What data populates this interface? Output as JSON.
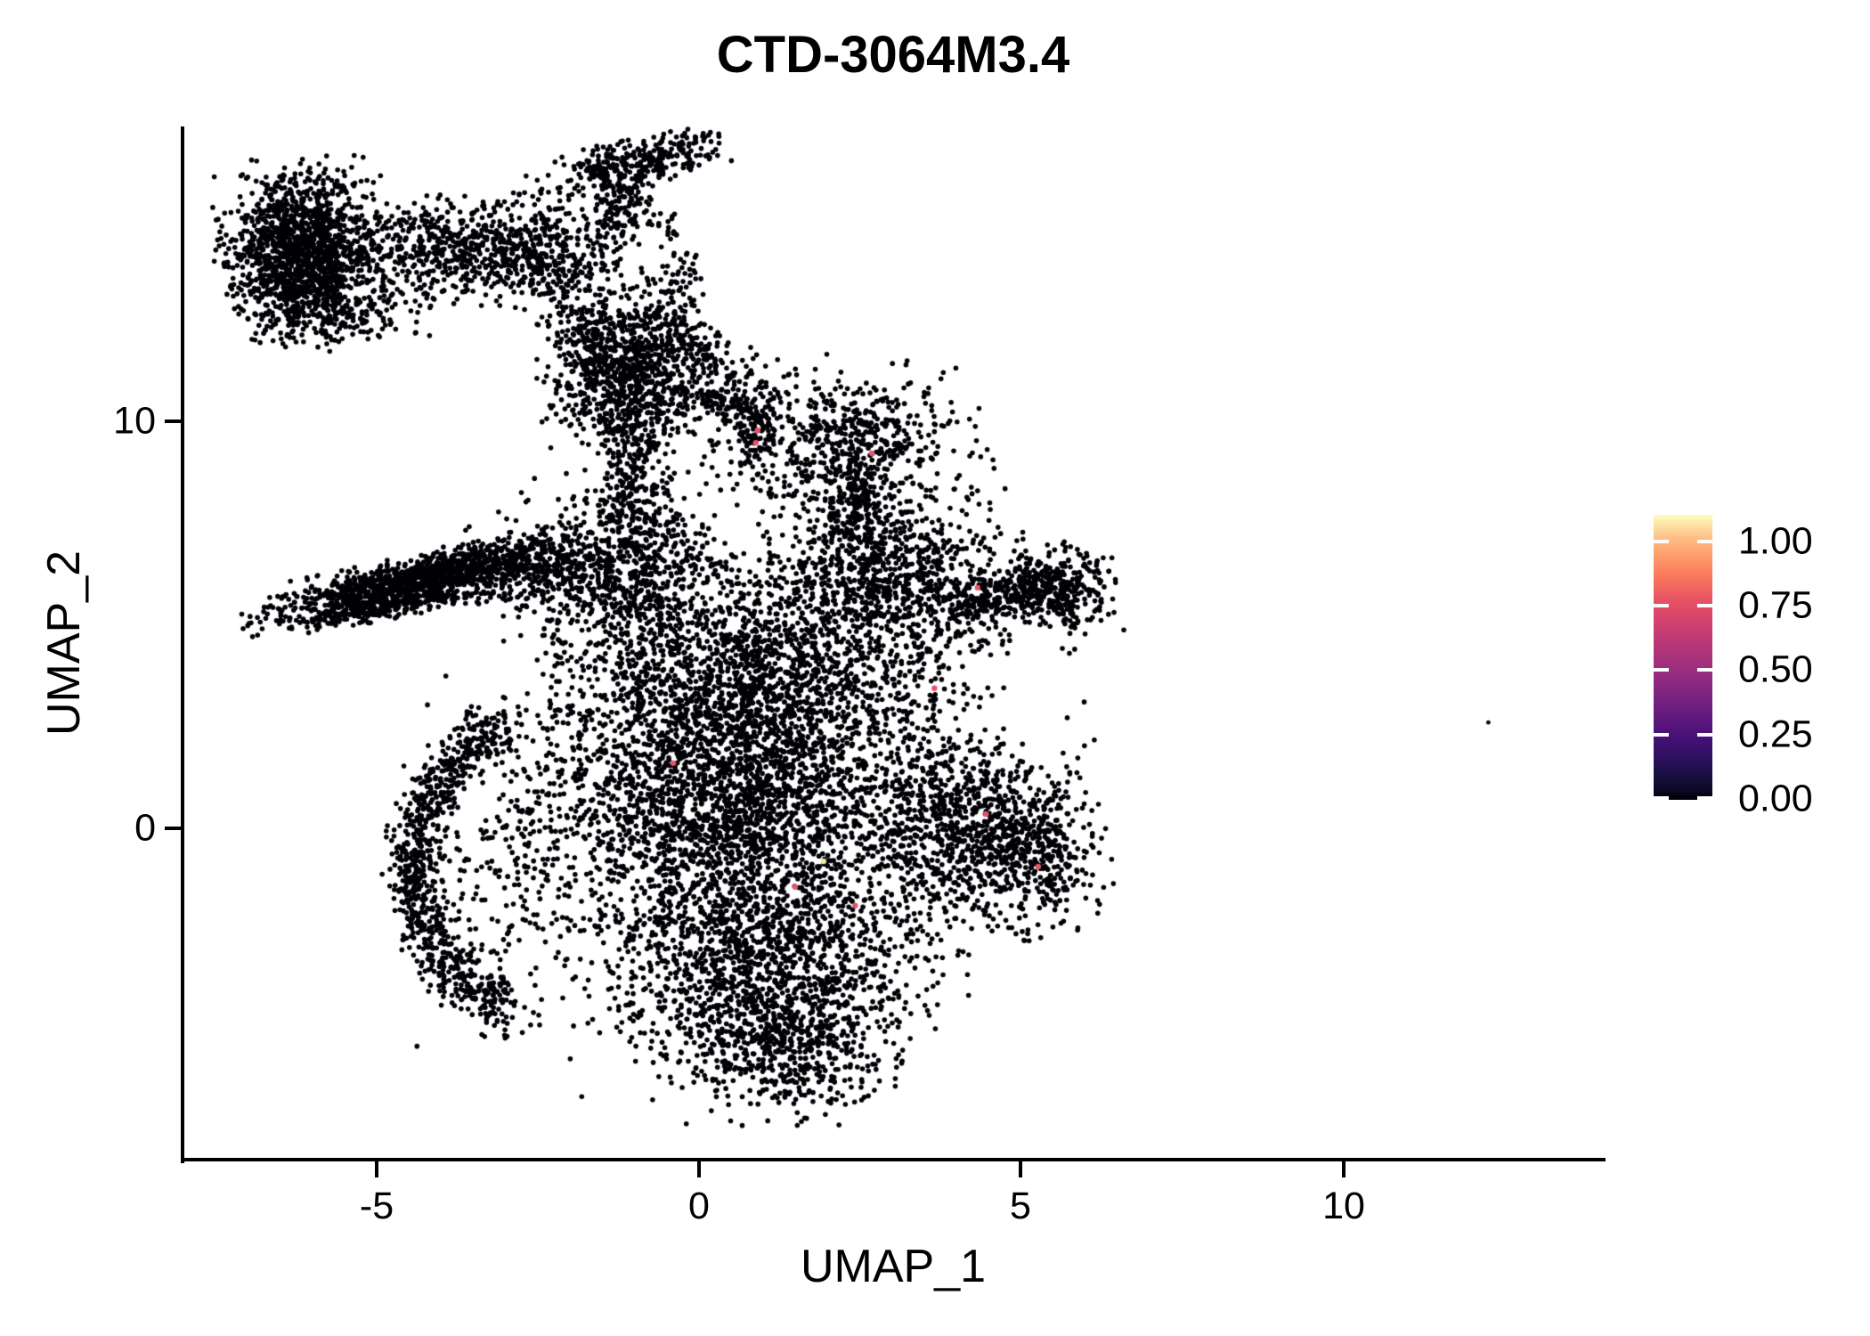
{
  "title": "CTD-3064M3.4",
  "x_axis": {
    "label": "UMAP_1",
    "ticks": [
      {
        "text": "-5"
      },
      {
        "text": "0"
      },
      {
        "text": "5"
      },
      {
        "text": "10"
      }
    ]
  },
  "y_axis": {
    "label": "UMAP_2",
    "ticks": [
      {
        "text": "10"
      },
      {
        "text": "0"
      }
    ]
  },
  "legend": {
    "ticks": [
      {
        "text": "1.00"
      },
      {
        "text": "0.75"
      },
      {
        "text": "0.50"
      },
      {
        "text": "0.25"
      },
      {
        "text": "0.00"
      }
    ]
  },
  "chart_data": {
    "type": "scatter",
    "title": "CTD-3064M3.4",
    "xlabel": "UMAP_1",
    "ylabel": "UMAP_2",
    "x_range": [
      -8.01,
      14.03
    ],
    "y_range": [
      -8.14,
      17.24
    ],
    "x_ticks": [
      -5,
      0,
      5,
      10
    ],
    "y_ticks": [
      0,
      10
    ],
    "grid": false,
    "legend_position": "right",
    "point_color": "#000006",
    "point_radius_px": 2.8,
    "expressing_point_radius_px": 3.2,
    "colorbar": {
      "value_ticks": [
        1.0,
        0.75,
        0.5,
        0.25,
        0.0
      ],
      "stops": [
        {
          "pos": 0,
          "color": "#fcfdbf"
        },
        {
          "pos": 8,
          "color": "#febf84"
        },
        {
          "pos": 14,
          "color": "#fe9f6d"
        },
        {
          "pos": 22,
          "color": "#f8765c"
        },
        {
          "pos": 30,
          "color": "#e75263"
        },
        {
          "pos": 38,
          "color": "#d0416f"
        },
        {
          "pos": 46,
          "color": "#b63679"
        },
        {
          "pos": 54,
          "color": "#9c2e7f"
        },
        {
          "pos": 62,
          "color": "#812581"
        },
        {
          "pos": 70,
          "color": "#641a80"
        },
        {
          "pos": 78,
          "color": "#471078"
        },
        {
          "pos": 85,
          "color": "#2d1160"
        },
        {
          "pos": 92,
          "color": "#180f3e"
        },
        {
          "pos": 97,
          "color": "#0a0722"
        },
        {
          "pos": 100,
          "color": "#000004"
        }
      ]
    },
    "seed": 42,
    "clusters": [
      {
        "shape": "gauss",
        "cx": -6.15,
        "cy": 14.18,
        "sx": 0.55,
        "sy": 0.92,
        "n": 1500
      },
      {
        "shape": "gauss",
        "cx": -5.66,
        "cy": 12.69,
        "sx": 0.6,
        "sy": 0.38,
        "n": 200
      },
      {
        "shape": "gauss",
        "cx": -4.21,
        "cy": 14.22,
        "sx": 0.48,
        "sy": 0.61,
        "n": 320
      },
      {
        "shape": "gauss",
        "cx": -2.69,
        "cy": 14.22,
        "sx": 0.62,
        "sy": 0.7,
        "n": 480
      },
      {
        "shape": "stream",
        "x1": -2.56,
        "y1": 13.79,
        "x2": -1.17,
        "y2": 11.16,
        "j": 0.25,
        "n": 140
      },
      {
        "shape": "gauss",
        "cx": -1.1,
        "cy": 11.27,
        "sx": 0.58,
        "sy": 0.98,
        "n": 950
      },
      {
        "shape": "stream",
        "x1": -1.8,
        "y1": 16.08,
        "x2": 0.0,
        "y2": 16.74,
        "j": 0.28,
        "n": 300
      },
      {
        "shape": "gauss",
        "cx": -1.17,
        "cy": 15.43,
        "sx": 0.25,
        "sy": 0.42,
        "n": 120
      },
      {
        "shape": "stream",
        "x1": -1.31,
        "y1": 14.88,
        "x2": -1.73,
        "y2": 13.13,
        "j": 0.2,
        "n": 60
      },
      {
        "shape": "stream",
        "x1": -0.48,
        "y1": 15.1,
        "x2": -0.21,
        "y2": 12.69,
        "j": 0.18,
        "n": 70
      },
      {
        "shape": "gauss",
        "cx": -4.35,
        "cy": 6.13,
        "sx": 1.15,
        "sy": 0.25,
        "rot": 20,
        "n": 1100
      },
      {
        "shape": "gauss",
        "cx": -4.8,
        "cy": 5.45,
        "sx": 0.95,
        "sy": 0.14,
        "rot": 15,
        "n": 300
      },
      {
        "shape": "gauss",
        "cx": -2.56,
        "cy": 6.35,
        "sx": 0.5,
        "sy": 0.5,
        "n": 250
      },
      {
        "shape": "gauss",
        "cx": -1.17,
        "cy": 6.35,
        "sx": 0.76,
        "sy": 0.98,
        "n": 750
      },
      {
        "shape": "gauss",
        "cx": 2.97,
        "cy": 6.13,
        "sx": 1.1,
        "sy": 0.88,
        "n": 850
      },
      {
        "shape": "gauss",
        "cx": 0.9,
        "cy": 3.72,
        "sx": 1.52,
        "sy": 1.2,
        "n": 1700
      },
      {
        "shape": "gauss",
        "cx": 0.48,
        "cy": 0.66,
        "sx": 1.38,
        "sy": 1.53,
        "n": 2400
      },
      {
        "shape": "gauss",
        "cx": 4.07,
        "cy": 0.0,
        "sx": 0.83,
        "sy": 1.2,
        "n": 850
      },
      {
        "shape": "gauss",
        "cx": 5.2,
        "cy": -0.6,
        "sx": 0.55,
        "sy": 0.85,
        "n": 350
      },
      {
        "shape": "gauss",
        "cx": 1.04,
        "cy": -3.28,
        "sx": 1.24,
        "sy": 1.31,
        "n": 1500
      },
      {
        "shape": "gauss",
        "cx": 1.31,
        "cy": -5.47,
        "sx": 0.76,
        "sy": 0.77,
        "n": 450
      },
      {
        "shape": "arc",
        "cx": -2.0,
        "cy": -0.98,
        "rx": 2.42,
        "ry": 3.83,
        "a1": 115,
        "a2": 245,
        "jx": 0.2,
        "jy": 0.38,
        "n": 850
      },
      {
        "shape": "gauss",
        "cx": -2.69,
        "cy": -0.88,
        "sx": 0.76,
        "sy": 1.97,
        "n": 300
      },
      {
        "shape": "stream",
        "x1": 3.8,
        "y1": 5.47,
        "x2": 5.32,
        "y2": 5.91,
        "j": 0.25,
        "n": 220
      },
      {
        "shape": "gauss",
        "cx": 5.59,
        "cy": 5.86,
        "sx": 0.39,
        "sy": 0.48,
        "n": 320
      },
      {
        "shape": "stream",
        "x1": -0.9,
        "y1": 10.07,
        "x2": -1.04,
        "y2": 7.44,
        "j": 0.28,
        "n": 200
      },
      {
        "shape": "gauss",
        "cx": 2.28,
        "cy": 9.41,
        "sx": 0.9,
        "sy": 0.88,
        "n": 650
      },
      {
        "shape": "gauss",
        "cx": 0.9,
        "cy": 9.63,
        "sx": 0.17,
        "sy": 0.45,
        "n": 70
      },
      {
        "shape": "stream",
        "x1": 2.28,
        "y1": 8.53,
        "x2": 2.69,
        "y2": 6.78,
        "j": 0.35,
        "n": 220
      },
      {
        "shape": "stream",
        "x1": -0.35,
        "y1": 10.72,
        "x2": 0.97,
        "y2": 10.18,
        "j": 0.22,
        "n": 130
      },
      {
        "shape": "stream",
        "x1": -0.48,
        "y1": 12.47,
        "x2": 0.9,
        "y2": 10.5,
        "j": 0.25,
        "n": 160
      }
    ],
    "expressing_cells": [
      {
        "x": 0.91,
        "y": 9.78,
        "value": 0.7,
        "color": "#e8536a"
      },
      {
        "x": 0.88,
        "y": 9.47,
        "value": 0.7,
        "color": "#e8536a"
      },
      {
        "x": 2.68,
        "y": 9.21,
        "value": 0.7,
        "color": "#e8536a"
      },
      {
        "x": 4.32,
        "y": 5.91,
        "value": 0.7,
        "color": "#e8536a"
      },
      {
        "x": 3.65,
        "y": 3.44,
        "value": 0.7,
        "color": "#e8536a"
      },
      {
        "x": -0.4,
        "y": 1.6,
        "value": 0.7,
        "color": "#e8536a"
      },
      {
        "x": 1.93,
        "y": -0.81,
        "value": 1.0,
        "color": "#efe9a2"
      },
      {
        "x": 1.49,
        "y": -1.44,
        "value": 0.7,
        "color": "#e8536a"
      },
      {
        "x": 2.42,
        "y": -1.9,
        "value": 0.7,
        "color": "#e8536a"
      },
      {
        "x": 4.45,
        "y": 0.35,
        "value": 0.7,
        "color": "#e8536a"
      },
      {
        "x": 5.26,
        "y": -0.94,
        "value": 0.7,
        "color": "#e8536a"
      }
    ],
    "outlier_points": [
      {
        "x": 12.24,
        "y": 2.6
      }
    ]
  }
}
